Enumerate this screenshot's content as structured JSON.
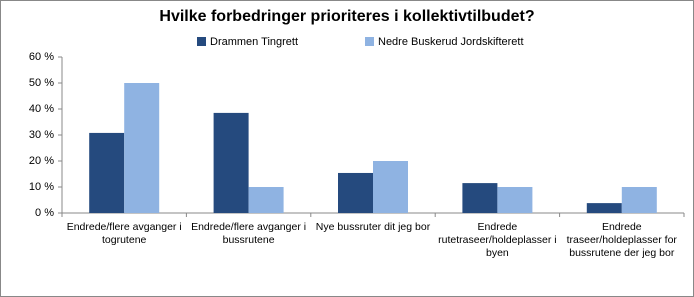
{
  "chart_data": {
    "type": "bar",
    "title": "Hvilke forbedringer prioriteres i kollektivtilbudet?",
    "categories": [
      "Endrede/flere avganger i togrutene",
      "Endrede/flere avganger i bussrutene",
      "Nye bussruter dit jeg bor",
      "Endrede rutetraseer/holdeplasser i byen",
      "Endrede traseer/holdeplasser for bussrutene der jeg bor"
    ],
    "series": [
      {
        "name": "Drammen Tingrett",
        "color": "#254a7e",
        "values": [
          30.8,
          38.5,
          15.4,
          11.5,
          3.8
        ]
      },
      {
        "name": "Nedre Buskerud Jordskifterett",
        "color": "#8fb3e2",
        "values": [
          50,
          10,
          20,
          10,
          10
        ]
      }
    ],
    "ylim": [
      0,
      60
    ],
    "yticks": [
      {
        "value": 0,
        "label": "0 %"
      },
      {
        "value": 10,
        "label": "10 %"
      },
      {
        "value": 20,
        "label": "20 %"
      },
      {
        "value": 30,
        "label": "30 %"
      },
      {
        "value": 40,
        "label": "40 %"
      },
      {
        "value": 50,
        "label": "50 %"
      },
      {
        "value": 60,
        "label": "60 %"
      }
    ],
    "legend": "top"
  }
}
